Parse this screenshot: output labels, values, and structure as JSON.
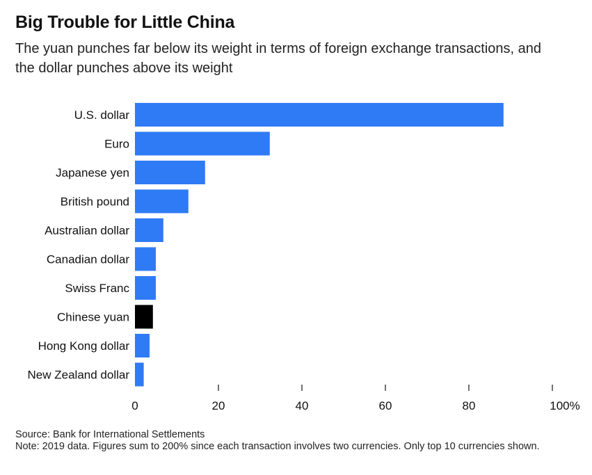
{
  "title": "Big Trouble for Little China",
  "subtitle": "The yuan punches far below its weight in terms of foreign exchange transactions, and the dollar punches above its weight",
  "source": "Source: Bank for International Settlements",
  "note": "Note: 2019 data. Figures sum to 200% since each transaction involves two currencies. Only top 10 currencies shown.",
  "colors": {
    "bar": "#2f7bf5",
    "highlight": "#000000",
    "text": "#111111"
  },
  "chart_data": {
    "type": "bar",
    "orientation": "horizontal",
    "categories": [
      "U.S. dollar",
      "Euro",
      "Japanese yen",
      "British pound",
      "Australian dollar",
      "Canadian dollar",
      "Swiss Franc",
      "Chinese yuan",
      "Hong Kong dollar",
      "New Zealand dollar"
    ],
    "values": [
      88.3,
      32.3,
      16.8,
      12.8,
      6.8,
      5.0,
      5.0,
      4.3,
      3.5,
      2.1
    ],
    "highlight": "Chinese yuan",
    "xlim": [
      0,
      100
    ],
    "xticks": [
      "0",
      "20",
      "40",
      "60",
      "80",
      "100%"
    ],
    "xlabel": "",
    "ylabel": "",
    "grid": false
  }
}
